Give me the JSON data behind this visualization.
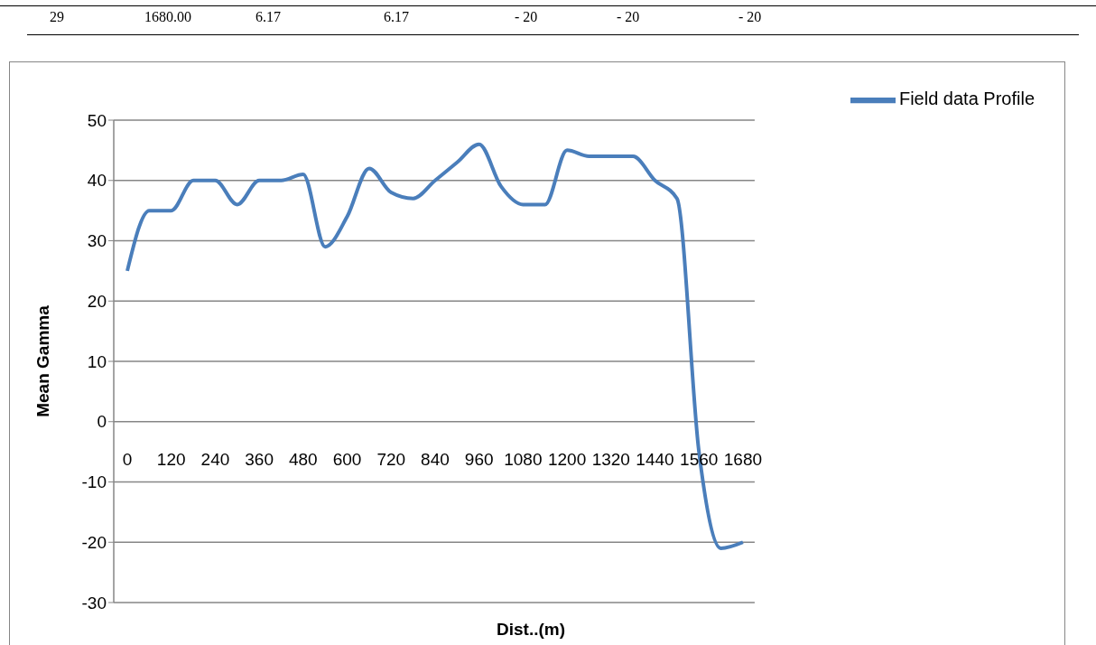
{
  "chart_data": {
    "type": "line",
    "xlabel": "Dist..(m)",
    "ylabel": "Mean Gamma",
    "annotations": [
      "29",
      "1680.00",
      "6.17",
      "6.17",
      "- 20",
      "- 20",
      "- 20"
    ],
    "categories": [
      "0",
      null,
      "120",
      null,
      "240",
      null,
      "360",
      null,
      "480",
      null,
      "600",
      null,
      "720",
      null,
      "840",
      null,
      "960",
      null,
      "1080",
      null,
      "1200",
      null,
      "1320",
      null,
      "1440",
      null,
      "1560",
      null,
      "1680"
    ],
    "series": [
      {
        "name": "Field data Profile",
        "color": "#4a7ebb",
        "values": [
          25,
          35,
          35,
          40,
          40,
          36,
          40,
          40,
          41,
          29,
          34,
          42,
          38,
          37,
          40,
          43,
          46,
          39,
          36,
          36,
          45,
          44,
          44,
          44,
          40,
          37,
          -5,
          -21,
          -20
        ]
      }
    ],
    "ylim": [
      -30,
      50
    ],
    "yticks": [
      -30,
      -20,
      -10,
      0,
      10,
      20,
      30,
      40,
      50
    ],
    "grid": "y",
    "legend": "top right"
  }
}
